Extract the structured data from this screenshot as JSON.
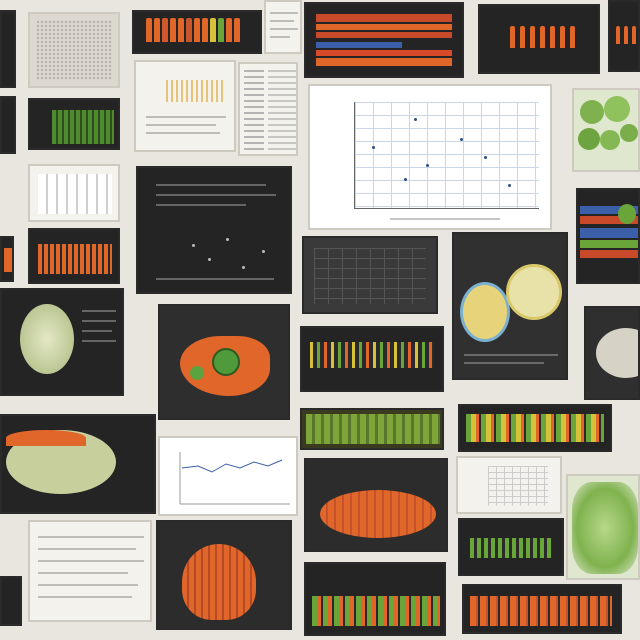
{
  "collage": {
    "title": "",
    "colors": {
      "background": "#e9e6df",
      "dark_panel": "#242424",
      "orange": "#e0662a",
      "green": "#6aa53a",
      "yellow": "#d6c23a",
      "blue": "#3b5fa8",
      "paper": "#f4f2ec"
    },
    "tiles": [
      {
        "name": "textured-fabric-photo",
        "kind": "image"
      },
      {
        "name": "orange-bar-strip-top",
        "kind": "chart"
      },
      {
        "name": "striped-rainbow-panel",
        "kind": "chart"
      },
      {
        "name": "orange-bars-panel-top-right",
        "kind": "chart"
      },
      {
        "name": "scatter-plot-paper",
        "kind": "chart"
      },
      {
        "name": "green-leaves-photo",
        "kind": "image"
      },
      {
        "name": "dark-scatter-panel",
        "kind": "chart"
      },
      {
        "name": "melon-illustration",
        "kind": "image"
      },
      {
        "name": "orange-fish-illustration",
        "kind": "image"
      },
      {
        "name": "cell-diagrams-panel",
        "kind": "diagram"
      },
      {
        "name": "colored-bars-row",
        "kind": "chart"
      },
      {
        "name": "green-yellow-bars-strip",
        "kind": "chart"
      },
      {
        "name": "green-leaf-closeup",
        "kind": "image"
      },
      {
        "name": "orange-pumpkin-panel",
        "kind": "image"
      },
      {
        "name": "line-chart-paper",
        "kind": "chart"
      },
      {
        "name": "orange-shell-illustration",
        "kind": "image"
      },
      {
        "name": "green-bars-bottom",
        "kind": "chart"
      },
      {
        "name": "orange-bars-bottom-right",
        "kind": "chart"
      }
    ]
  }
}
